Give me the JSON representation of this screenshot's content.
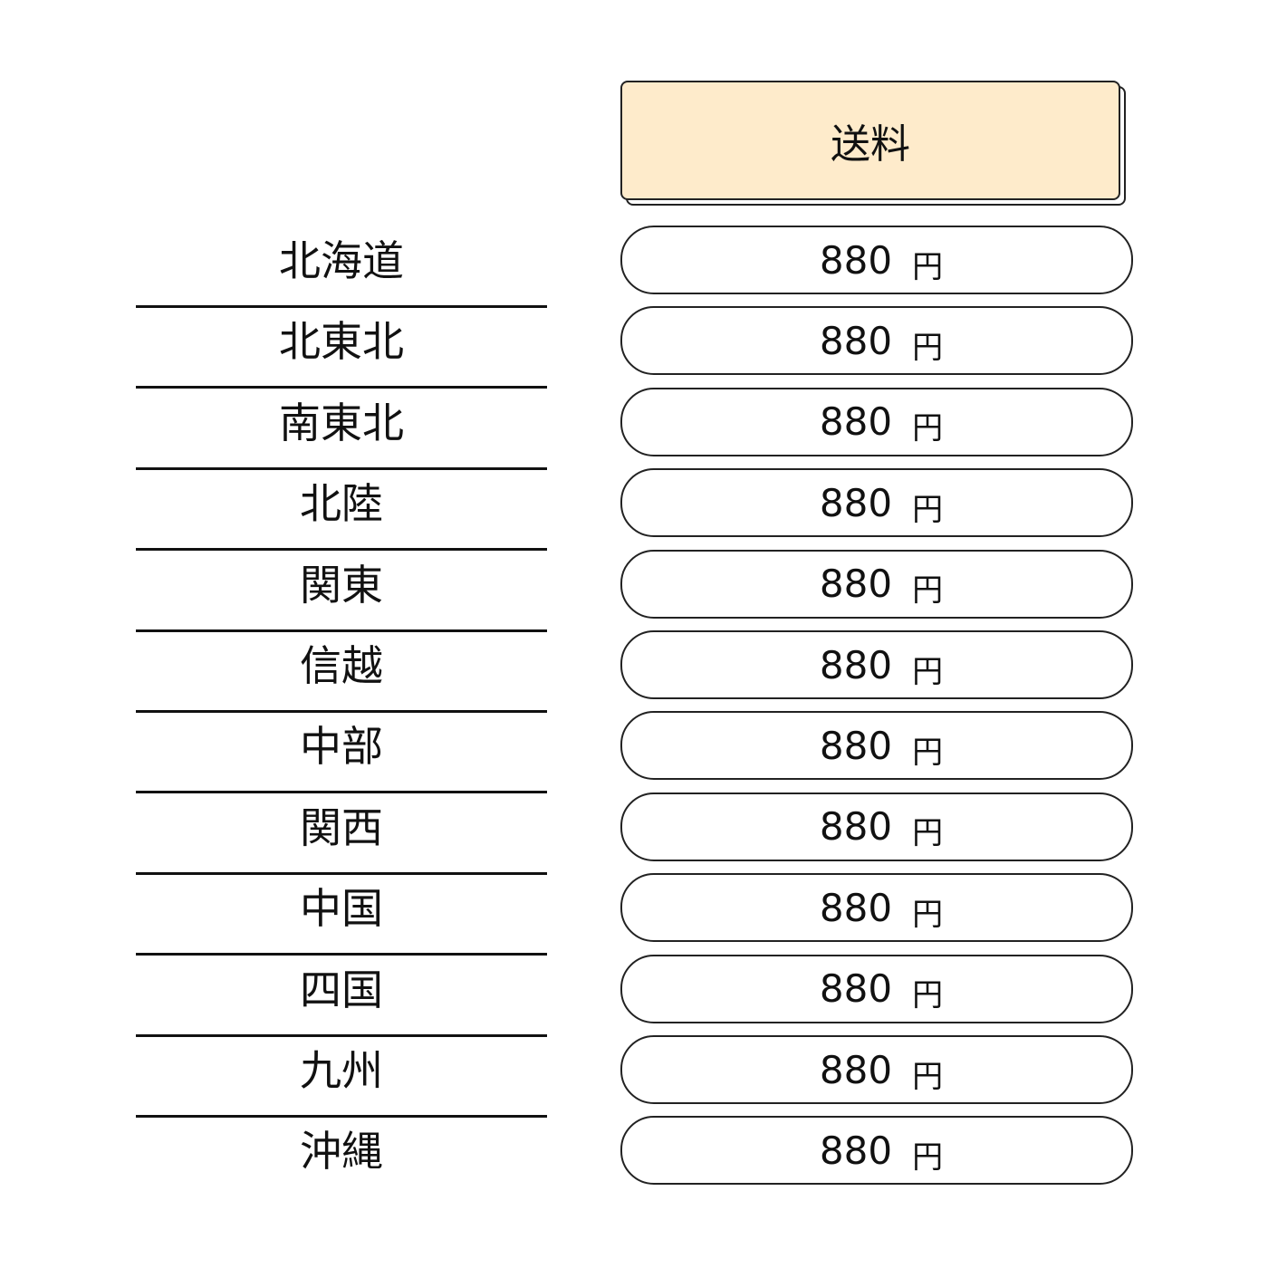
{
  "header": {
    "label": "送料",
    "fill_color": "#FEEBCB"
  },
  "rows": [
    {
      "region": "北海道",
      "price": "880",
      "unit": "円"
    },
    {
      "region": "北東北",
      "price": "880",
      "unit": "円"
    },
    {
      "region": "南東北",
      "price": "880",
      "unit": "円"
    },
    {
      "region": "北陸",
      "price": "880",
      "unit": "円"
    },
    {
      "region": "関東",
      "price": "880",
      "unit": "円"
    },
    {
      "region": "信越",
      "price": "880",
      "unit": "円"
    },
    {
      "region": "中部",
      "price": "880",
      "unit": "円"
    },
    {
      "region": "関西",
      "price": "880",
      "unit": "円"
    },
    {
      "region": "中国",
      "price": "880",
      "unit": "円"
    },
    {
      "region": "四国",
      "price": "880",
      "unit": "円"
    },
    {
      "region": "九州",
      "price": "880",
      "unit": "円"
    },
    {
      "region": "沖縄",
      "price": "880",
      "unit": "円"
    }
  ]
}
